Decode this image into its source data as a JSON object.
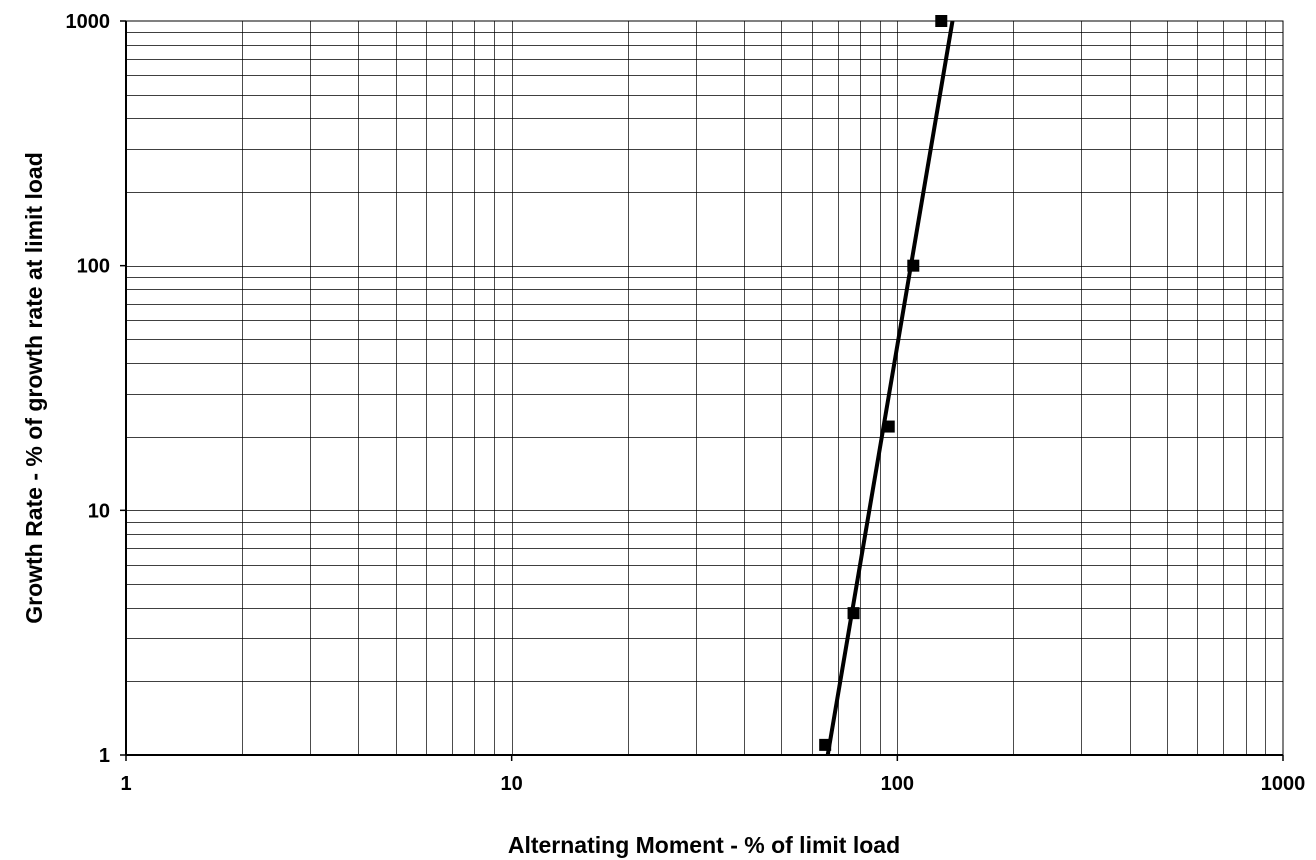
{
  "chart_data": {
    "type": "line",
    "title": "",
    "xlabel": "Alternating Moment - % of limit load",
    "ylabel": "Growth Rate - % of growth rate at limit load",
    "x_scale": "log",
    "y_scale": "log",
    "xlim": [
      1,
      1000
    ],
    "ylim": [
      1,
      1000
    ],
    "x_tick_labels": [
      "1",
      "10",
      "100",
      "1000"
    ],
    "y_tick_labels": [
      "1",
      "10",
      "100",
      "1000"
    ],
    "grid": true,
    "legend": "none",
    "series": [
      {
        "marker": "square",
        "color": "#000000",
        "x": [
          65,
          77,
          95,
          110,
          130
        ],
        "y": [
          1.1,
          3.8,
          22,
          100,
          1000
        ]
      }
    ],
    "trendline": {
      "x": [
        66,
        139
      ],
      "y": [
        1,
        1000
      ],
      "color": "#000000"
    }
  }
}
